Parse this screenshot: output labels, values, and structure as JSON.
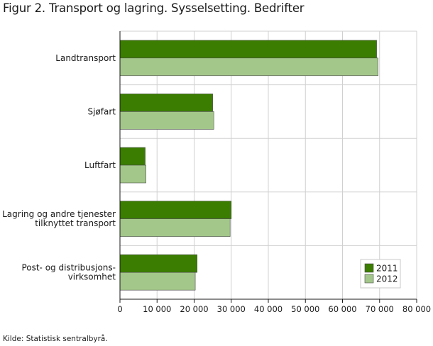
{
  "title": "Figur 2. Transport og lagring. Sysselsetting. Bedrifter",
  "source": "Kilde: Statistisk sentralbyrå.",
  "chart_data": {
    "type": "bar",
    "orientation": "horizontal",
    "title": "Figur 2. Transport og lagring. Sysselsetting. Bedrifter",
    "categories": [
      [
        "Landtransport"
      ],
      [
        "Sjøfart"
      ],
      [
        "Luftfart"
      ],
      [
        "Lagring og andre tjenester",
        "tilknyttet transport"
      ],
      [
        "Post- og distribusjons-",
        "virksomhet"
      ]
    ],
    "series": [
      {
        "name": "2011",
        "color": "#3a7d00",
        "values": [
          69200,
          25000,
          6800,
          30000,
          20800
        ]
      },
      {
        "name": "2012",
        "color": "#a3c78a",
        "values": [
          69600,
          25300,
          7000,
          29700,
          20300
        ]
      }
    ],
    "xlim": [
      0,
      80000
    ],
    "xticks": [
      0,
      10000,
      20000,
      30000,
      40000,
      50000,
      60000,
      70000,
      80000
    ],
    "xtick_labels": [
      "0",
      "10 000",
      "20 000",
      "30 000",
      "40 000",
      "50 000",
      "60 000",
      "70 000",
      "80 000"
    ],
    "grid": true,
    "legend_position": "bottom-right"
  }
}
